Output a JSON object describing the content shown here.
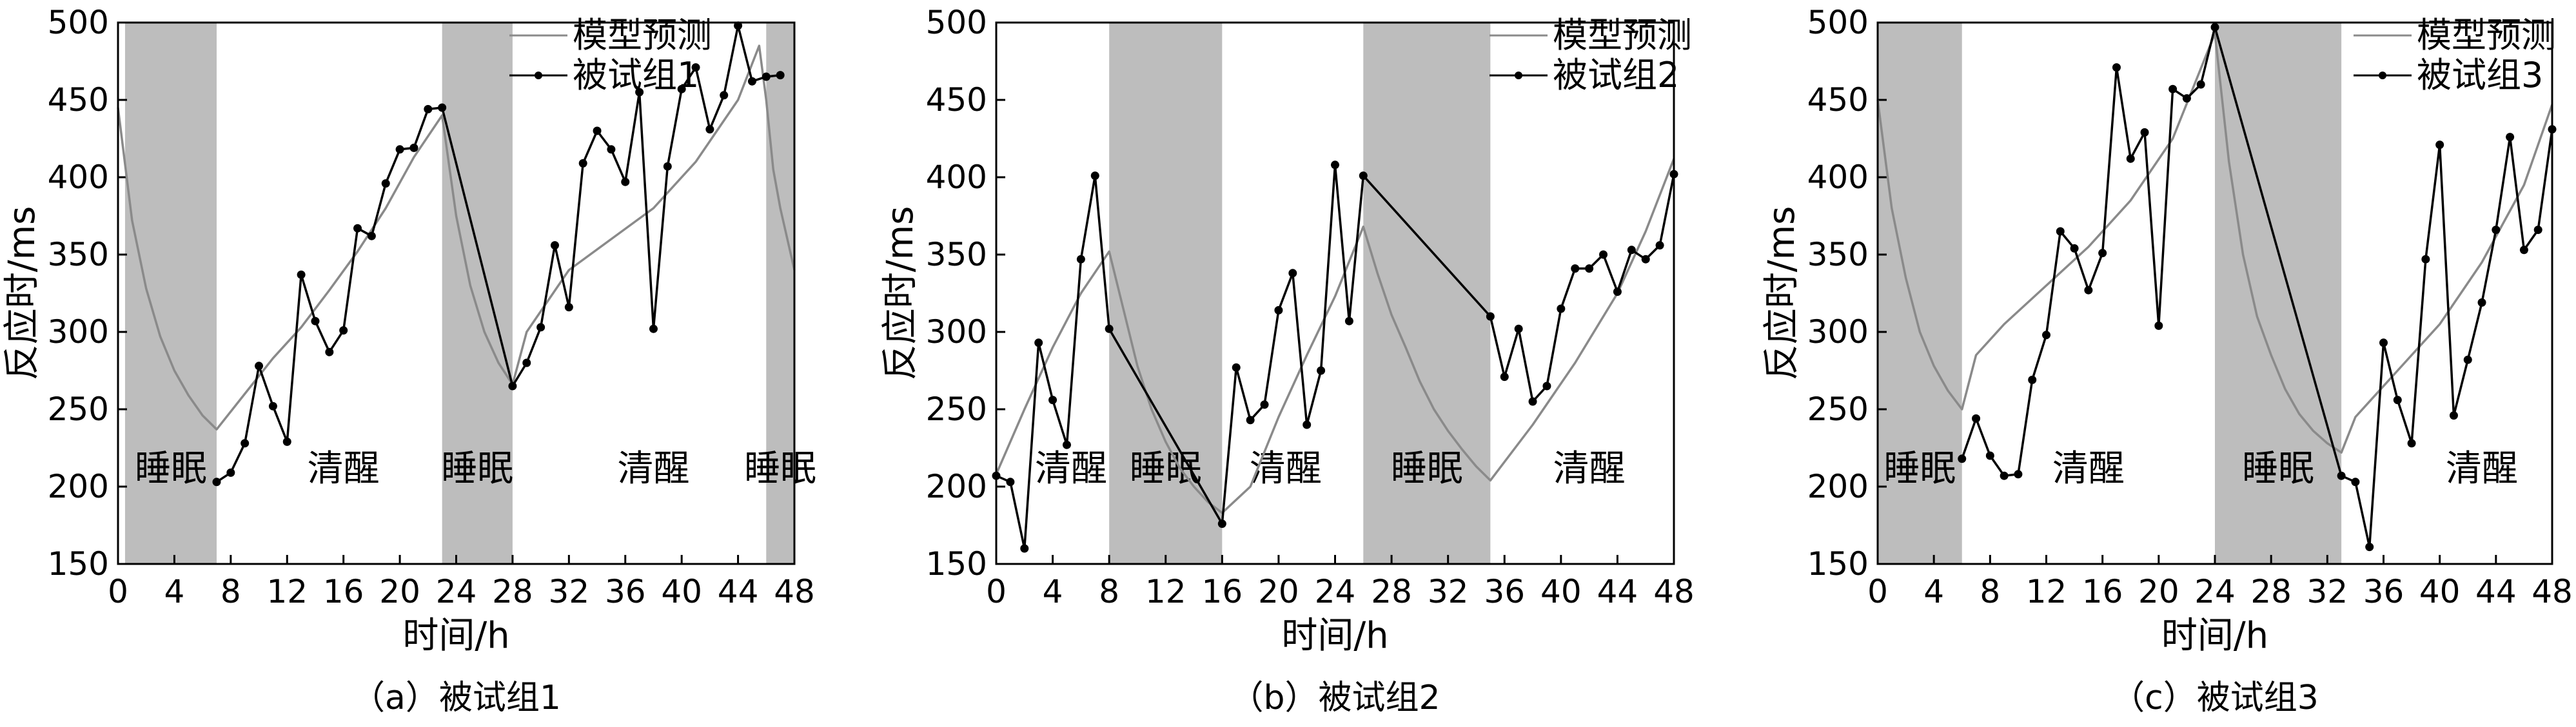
{
  "chart_data": [
    {
      "type": "line",
      "caption": "（a）被试组1",
      "xlabel": "时间/h",
      "ylabel": "反应时/ms",
      "xlim": [
        0,
        48
      ],
      "ylim": [
        150,
        500
      ],
      "xticks": [
        0,
        4,
        8,
        12,
        16,
        20,
        24,
        28,
        32,
        36,
        40,
        44,
        48
      ],
      "yticks": [
        150,
        200,
        250,
        300,
        350,
        400,
        450,
        500
      ],
      "legend": {
        "position": "top-right",
        "entries": [
          "模型预测",
          "被试组1"
        ]
      },
      "shaded_regions": [
        {
          "start": 0.5,
          "end": 7,
          "label": "睡眠"
        },
        {
          "start": 23,
          "end": 28,
          "label": "睡眠"
        },
        {
          "start": 46,
          "end": 48,
          "label": "睡眠"
        }
      ],
      "text_labels": [
        {
          "text": "清醒",
          "x": 16,
          "y": 212
        },
        {
          "text": "清醒",
          "x": 38,
          "y": 212
        }
      ],
      "series": [
        {
          "name": "模型预测",
          "color": "#8a8a8a",
          "marker": "none",
          "x": [
            0,
            1,
            2,
            3,
            4,
            5,
            6,
            7,
            9,
            11,
            13,
            15,
            17,
            19,
            21,
            23,
            24,
            25,
            26,
            27,
            28,
            29,
            32,
            35,
            38,
            41,
            44,
            45.5,
            46,
            46.5,
            47,
            48
          ],
          "y": [
            445,
            372,
            328,
            297,
            275,
            259,
            246,
            237,
            260,
            283,
            303,
            327,
            352,
            380,
            413,
            440,
            375,
            330,
            300,
            280,
            266,
            300,
            340,
            360,
            380,
            410,
            450,
            485,
            450,
            405,
            380,
            340
          ]
        },
        {
          "name": "被试组1",
          "color": "#000000",
          "marker": "dot",
          "x": [
            7,
            8,
            9,
            10,
            11,
            12,
            13,
            14,
            15,
            16,
            17,
            18,
            19,
            20,
            21,
            22,
            23,
            28,
            29,
            30,
            31,
            32,
            33,
            34,
            35,
            36,
            37,
            38,
            39,
            40,
            41,
            42,
            43,
            44,
            45,
            46,
            47
          ],
          "y": [
            203,
            209,
            228,
            278,
            252,
            229,
            337,
            307,
            287,
            301,
            367,
            362,
            396,
            418,
            419,
            444,
            445,
            265,
            280,
            303,
            356,
            316,
            409,
            430,
            418,
            397,
            455,
            302,
            407,
            457,
            471,
            431,
            453,
            498,
            462,
            465,
            466
          ]
        }
      ]
    },
    {
      "type": "line",
      "caption": "（b）被试组2",
      "xlabel": "时间/h",
      "ylabel": "反应时/ms",
      "xlim": [
        0,
        48
      ],
      "ylim": [
        150,
        500
      ],
      "xticks": [
        0,
        4,
        8,
        12,
        16,
        20,
        24,
        28,
        32,
        36,
        40,
        44,
        48
      ],
      "yticks": [
        150,
        200,
        250,
        300,
        350,
        400,
        450,
        500
      ],
      "legend": {
        "position": "top-right",
        "entries": [
          "模型预测",
          "被试组2"
        ]
      },
      "shaded_regions": [
        {
          "start": 8,
          "end": 16,
          "label": "睡眠"
        },
        {
          "start": 26,
          "end": 35,
          "label": "睡眠"
        }
      ],
      "text_labels": [
        {
          "text": "清醒",
          "x": 5.3,
          "y": 212
        },
        {
          "text": "清醒",
          "x": 20.5,
          "y": 212
        },
        {
          "text": "清醒",
          "x": 42,
          "y": 212
        }
      ],
      "series": [
        {
          "name": "模型预测",
          "color": "#8a8a8a",
          "marker": "none",
          "x": [
            0,
            2,
            4,
            6,
            8,
            9,
            10,
            11,
            12,
            13,
            14,
            15,
            16,
            18,
            20,
            22,
            24,
            26,
            27,
            28,
            29,
            30,
            31,
            32,
            33,
            34,
            35,
            38,
            41,
            44,
            46,
            48
          ],
          "y": [
            208,
            250,
            290,
            325,
            352,
            315,
            278,
            250,
            229,
            212,
            200,
            190,
            183,
            200,
            245,
            285,
            323,
            368,
            338,
            311,
            290,
            268,
            250,
            236,
            224,
            213,
            204,
            240,
            280,
            325,
            365,
            412
          ]
        },
        {
          "name": "被试组2",
          "color": "#000000",
          "marker": "dot",
          "x": [
            0,
            1,
            2,
            3,
            4,
            5,
            6,
            7,
            8,
            16,
            17,
            18,
            19,
            20,
            21,
            22,
            23,
            24,
            25,
            26,
            35,
            36,
            37,
            38,
            39,
            40,
            41,
            42,
            43,
            44,
            45,
            46,
            47,
            48
          ],
          "y": [
            207,
            203,
            160,
            293,
            256,
            227,
            347,
            401,
            302,
            176,
            277,
            243,
            253,
            314,
            338,
            240,
            275,
            408,
            307,
            401,
            310,
            271,
            302,
            255,
            265,
            315,
            341,
            341,
            350,
            326,
            353,
            347,
            356,
            402
          ]
        }
      ]
    },
    {
      "type": "line",
      "caption": "（c）被试组3",
      "xlabel": "时间/h",
      "ylabel": "反应时/ms",
      "xlim": [
        0,
        48
      ],
      "ylim": [
        150,
        500
      ],
      "xticks": [
        0,
        4,
        8,
        12,
        16,
        20,
        24,
        28,
        32,
        36,
        40,
        44,
        48
      ],
      "yticks": [
        150,
        200,
        250,
        300,
        350,
        400,
        450,
        500
      ],
      "legend": {
        "position": "top-left",
        "entries": [
          "模型预测",
          "被试组3"
        ]
      },
      "shaded_regions": [
        {
          "start": 0,
          "end": 6,
          "label": "睡眠"
        },
        {
          "start": 24,
          "end": 33,
          "label": "睡眠"
        }
      ],
      "text_labels": [
        {
          "text": "清醒",
          "x": 15,
          "y": 212
        },
        {
          "text": "清醒",
          "x": 43,
          "y": 212
        }
      ],
      "series": [
        {
          "name": "模型预测",
          "color": "#8a8a8a",
          "marker": "none",
          "x": [
            0,
            1,
            2,
            3,
            4,
            5,
            6,
            7,
            9,
            12,
            15,
            18,
            21,
            24,
            25,
            26,
            27,
            28,
            29,
            30,
            31,
            32,
            33,
            34,
            37,
            40,
            43,
            46,
            48
          ],
          "y": [
            450,
            380,
            335,
            300,
            278,
            262,
            250,
            285,
            305,
            330,
            355,
            385,
            425,
            493,
            410,
            350,
            310,
            285,
            263,
            247,
            236,
            228,
            222,
            245,
            275,
            305,
            345,
            395,
            447
          ]
        },
        {
          "name": "被试组3",
          "color": "#000000",
          "marker": "dot",
          "x": [
            6,
            7,
            8,
            9,
            10,
            11,
            12,
            13,
            14,
            15,
            16,
            17,
            18,
            19,
            20,
            21,
            22,
            23,
            24,
            33,
            34,
            35,
            36,
            37,
            38,
            39,
            40,
            41,
            42,
            43,
            44,
            45,
            46,
            47,
            48
          ],
          "y": [
            218,
            244,
            220,
            207,
            208,
            269,
            298,
            365,
            354,
            327,
            351,
            471,
            412,
            429,
            304,
            457,
            451,
            460,
            497,
            207,
            203,
            161,
            293,
            256,
            228,
            347,
            421,
            246,
            282,
            319,
            366,
            426,
            353,
            366,
            431
          ]
        }
      ]
    }
  ]
}
